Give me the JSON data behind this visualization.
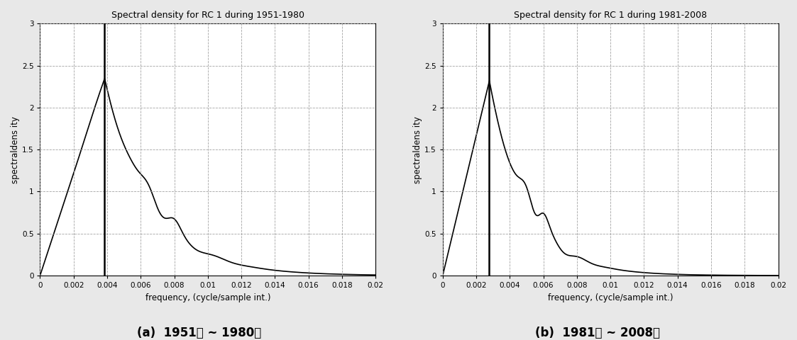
{
  "title1": "Spectral density for RC 1 during 1951-1980",
  "title2": "Spectral density for RC 1 during 1981-2008",
  "xlabel": "frequency, (cycle/sample int.)",
  "ylabel": "spectraldens ity",
  "caption1": "(a)  1951년 ~ 1980년",
  "caption2": "(b)  1981년 ~ 2008년",
  "xlim": [
    0,
    0.02
  ],
  "ylim": [
    0,
    3
  ],
  "xticks": [
    0,
    0.002,
    0.004,
    0.006,
    0.008,
    0.01,
    0.012,
    0.014,
    0.016,
    0.018,
    0.02
  ],
  "yticks": [
    0,
    0.5,
    1,
    1.5,
    2,
    2.5,
    3
  ],
  "peak1_freq": 0.00385,
  "peak2_freq": 0.00278,
  "vline1_freq": 0.00385,
  "vline2_freq": 0.00278,
  "line_color": "#000000",
  "grid_color": "#999999",
  "bg_color": "#ffffff",
  "fig_bg_color": "#e8e8e8"
}
